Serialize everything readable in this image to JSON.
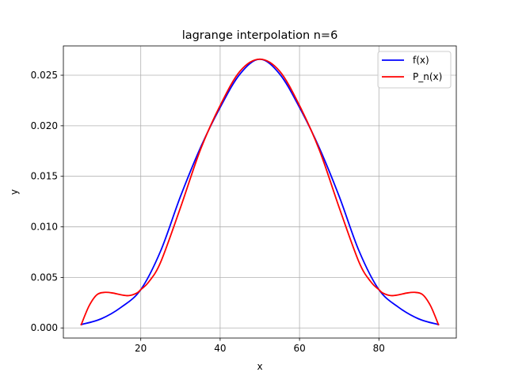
{
  "chart_data": {
    "type": "line",
    "title": "lagrange interpolation n=6",
    "xlabel": "x",
    "ylabel": "y",
    "xlim": [
      0.5,
      99.5
    ],
    "ylim": [
      -0.001,
      0.0279
    ],
    "xticks": [
      20,
      40,
      60,
      80
    ],
    "xtick_labels": [
      "20",
      "40",
      "60",
      "80"
    ],
    "yticks": [
      0,
      0.005,
      0.01,
      0.015,
      0.02,
      0.025
    ],
    "ytick_labels": [
      "0.000",
      "0.005",
      "0.010",
      "0.015",
      "0.020",
      "0.025"
    ],
    "grid": true,
    "legend_position": "upper-right",
    "series": [
      {
        "name": "f(x)",
        "color": "#0000ff",
        "x": [
          5,
          10,
          15,
          20,
          25,
          30,
          35,
          40,
          45,
          50,
          55,
          60,
          65,
          70,
          75,
          80,
          85,
          90,
          95
        ],
        "y": [
          0.00033,
          0.0009,
          0.00203,
          0.00379,
          0.00761,
          0.01301,
          0.0178,
          0.02181,
          0.02512,
          0.02659,
          0.02512,
          0.02181,
          0.0178,
          0.01301,
          0.00761,
          0.00379,
          0.00203,
          0.0009,
          0.00033
        ]
      },
      {
        "name": "P_n(x)",
        "color": "#ff0000",
        "x": [
          5,
          7,
          9,
          11,
          13,
          15,
          17,
          19,
          20,
          22,
          25,
          30,
          35,
          40,
          45,
          50,
          55,
          60,
          65,
          70,
          75,
          78,
          80,
          81,
          83,
          85,
          87,
          89,
          91,
          93,
          95
        ],
        "y": [
          0.00033,
          0.0022,
          0.0033,
          0.00352,
          0.00345,
          0.00328,
          0.0032,
          0.00345,
          0.00379,
          0.00455,
          0.0065,
          0.0119,
          0.0176,
          0.022,
          0.0254,
          0.02659,
          0.0254,
          0.022,
          0.0176,
          0.0119,
          0.0065,
          0.00455,
          0.00379,
          0.00345,
          0.0032,
          0.00328,
          0.00345,
          0.00352,
          0.0033,
          0.0022,
          0.00033
        ]
      }
    ]
  }
}
